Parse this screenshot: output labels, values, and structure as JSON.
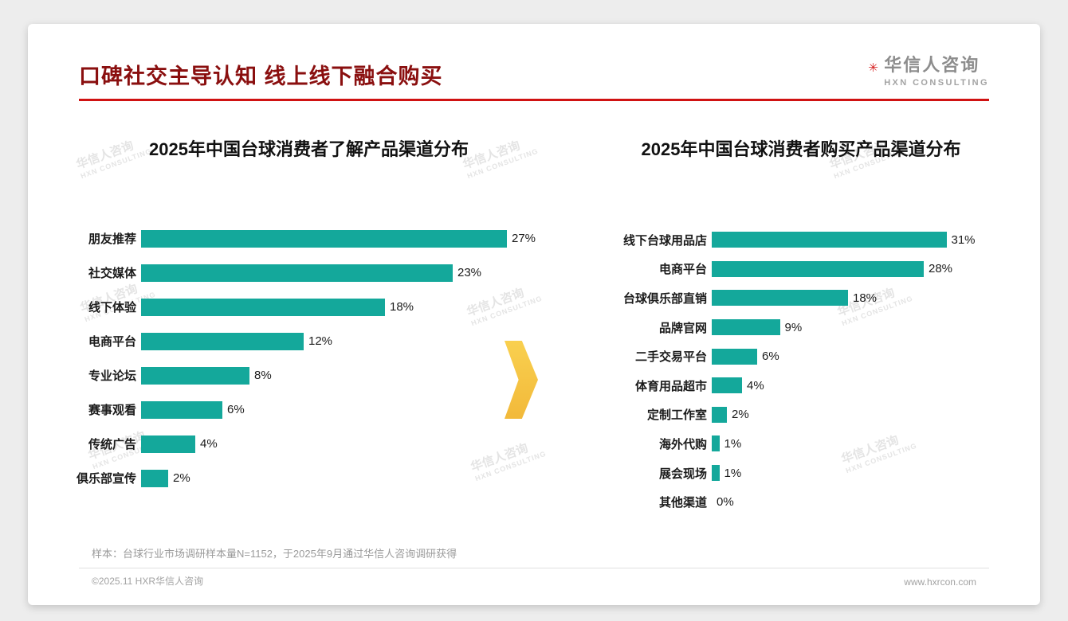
{
  "page": {
    "title": "口碑社交主导认知 线上线下融合购买",
    "logo": {
      "mark": "✳",
      "name": "华信人咨询",
      "sub": "HXN CONSULTING"
    },
    "watermark": {
      "line1": "华信人咨询",
      "line2": "HXN CONSULTING"
    },
    "note": "样本：台球行业市场调研样本量N=1152，于2025年9月通过华信人咨询调研获得",
    "footer": {
      "left": "©2025.11 HXR华信人咨询",
      "right": "www.hxrcon.com"
    }
  },
  "colors": {
    "bar_teal": "#14a89b",
    "title_red": "#8a0f0f",
    "underline_red": "#d01212",
    "arrow_gold": "#f6c445"
  },
  "chart_data": [
    {
      "type": "bar",
      "orientation": "horizontal",
      "title": "2025年中国台球消费者了解产品渠道分布",
      "categories": [
        "朋友推荐",
        "社交媒体",
        "线下体验",
        "电商平台",
        "专业论坛",
        "赛事观看",
        "传统广告",
        "俱乐部宣传"
      ],
      "values": [
        27,
        23,
        18,
        12,
        8,
        6,
        4,
        2
      ],
      "unit": "%",
      "data_labels": [
        "27%",
        "23%",
        "18%",
        "12%",
        "8%",
        "6%",
        "4%",
        "2%"
      ],
      "xlim": [
        0,
        30
      ],
      "grid": false,
      "legend": "none"
    },
    {
      "type": "bar",
      "orientation": "horizontal",
      "title": "2025年中国台球消费者购买产品渠道分布",
      "categories": [
        "线下台球用品店",
        "电商平台",
        "台球俱乐部直销",
        "品牌官网",
        "二手交易平台",
        "体育用品超市",
        "定制工作室",
        "海外代购",
        "展会现场",
        "其他渠道"
      ],
      "values": [
        31,
        28,
        18,
        9,
        6,
        4,
        2,
        1,
        1,
        0
      ],
      "unit": "%",
      "data_labels": [
        "31%",
        "28%",
        "18%",
        "9%",
        "6%",
        "4%",
        "2%",
        "1%",
        "1%",
        "0%"
      ],
      "xlim": [
        0,
        34
      ],
      "grid": false,
      "legend": "none"
    }
  ]
}
